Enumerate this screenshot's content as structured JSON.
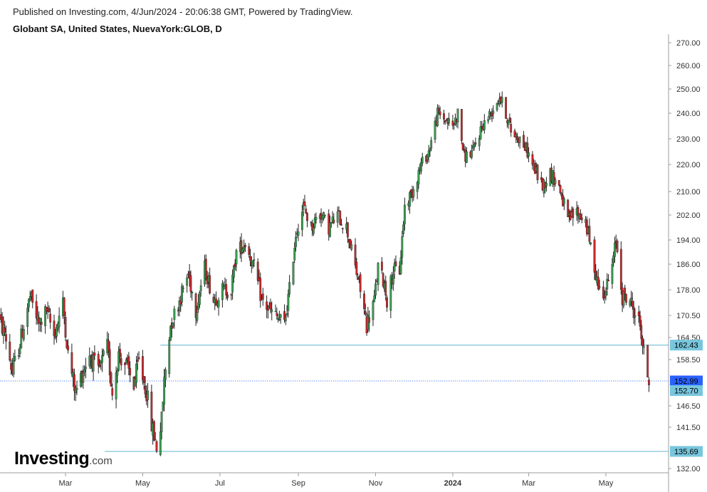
{
  "header": {
    "published": "Published on Investing.com, 4/Jun/2024 - 20:06:38 GMT, Powered by TradingView.",
    "instrument": "Globant SA, United States, NuevaYork:GLOB, D"
  },
  "logo": {
    "main": "Investing",
    "suffix": ".com"
  },
  "colors": {
    "up": "#3a9e50",
    "down": "#c8282b",
    "level_line": "#5fb6cf",
    "current_line": "#2962ff",
    "axis": "#9e9e9e"
  },
  "chart_data": {
    "type": "candlestick",
    "title": "",
    "xlabel": "",
    "ylabel": "",
    "ylim": [
      130.5,
      272
    ],
    "grid": false,
    "y_ticks": [
      "270.00",
      "260.00",
      "250.00",
      "240.00",
      "230.00",
      "220.00",
      "210.00",
      "202.00",
      "194.00",
      "186.00",
      "178.00",
      "170.50",
      "164.50",
      "158.50",
      "152.99",
      "152.70",
      "146.50",
      "141.50",
      "132.00"
    ],
    "y_tick_values": [
      270,
      260,
      250,
      240,
      230,
      220,
      210,
      202,
      194,
      186,
      178,
      170.5,
      164.5,
      158.5,
      152.99,
      152.7,
      146.5,
      141.5,
      132
    ],
    "x_ticks": [
      {
        "label": "Mar",
        "date": "2023-03-01",
        "bold": false
      },
      {
        "label": "May",
        "date": "2023-05-01",
        "bold": false
      },
      {
        "label": "Jul",
        "date": "2023-07-01",
        "bold": false
      },
      {
        "label": "Sep",
        "date": "2023-09-01",
        "bold": false
      },
      {
        "label": "Nov",
        "date": "2023-11-01",
        "bold": false
      },
      {
        "label": "2024",
        "date": "2024-01-01",
        "bold": true
      },
      {
        "label": "Mar",
        "date": "2024-03-01",
        "bold": false
      },
      {
        "label": "May",
        "date": "2024-05-01",
        "bold": false
      }
    ],
    "levels": [
      {
        "value": 162.43,
        "label": "162.43",
        "style": "solid",
        "start_date": "2023-05-15"
      },
      {
        "value": 135.69,
        "label": "135.69",
        "style": "solid",
        "start_date": "2023-04-01"
      },
      {
        "value": 152.99,
        "label": "152.99",
        "style": "dotted-current",
        "start_date": "2023-01-05"
      }
    ],
    "last_tag": {
      "value": 152.7,
      "label": "152.70"
    },
    "price_path": [
      [
        "2023-01-05",
        170
      ],
      [
        "2023-01-12",
        166
      ],
      [
        "2023-01-18",
        155
      ],
      [
        "2023-01-24",
        163
      ],
      [
        "2023-02-01",
        176
      ],
      [
        "2023-02-08",
        168
      ],
      [
        "2023-02-14",
        172
      ],
      [
        "2023-02-20",
        165
      ],
      [
        "2023-02-27",
        174
      ],
      [
        "2023-03-03",
        160
      ],
      [
        "2023-03-09",
        150
      ],
      [
        "2023-03-14",
        155
      ],
      [
        "2023-03-20",
        160
      ],
      [
        "2023-03-27",
        155
      ],
      [
        "2023-04-03",
        162
      ],
      [
        "2023-04-07",
        150
      ],
      [
        "2023-04-12",
        160
      ],
      [
        "2023-04-18",
        157
      ],
      [
        "2023-04-24",
        152
      ],
      [
        "2023-04-28",
        158
      ],
      [
        "2023-05-04",
        150
      ],
      [
        "2023-05-08",
        142
      ],
      [
        "2023-05-12",
        137
      ],
      [
        "2023-05-16",
        143
      ],
      [
        "2023-05-18",
        153
      ],
      [
        "2023-05-23",
        168
      ],
      [
        "2023-05-30",
        175
      ],
      [
        "2023-06-06",
        183
      ],
      [
        "2023-06-12",
        172
      ],
      [
        "2023-06-19",
        185
      ],
      [
        "2023-06-26",
        175
      ],
      [
        "2023-07-03",
        178
      ],
      [
        "2023-07-10",
        178
      ],
      [
        "2023-07-14",
        190
      ],
      [
        "2023-07-21",
        193
      ],
      [
        "2023-07-28",
        185
      ],
      [
        "2023-08-03",
        175
      ],
      [
        "2023-08-09",
        172
      ],
      [
        "2023-08-15",
        170
      ],
      [
        "2023-08-21",
        168
      ],
      [
        "2023-08-25",
        178
      ],
      [
        "2023-08-30",
        196
      ],
      [
        "2023-09-05",
        205
      ],
      [
        "2023-09-11",
        198
      ],
      [
        "2023-09-18",
        203
      ],
      [
        "2023-09-25",
        198
      ],
      [
        "2023-10-02",
        202
      ],
      [
        "2023-10-09",
        198
      ],
      [
        "2023-10-16",
        185
      ],
      [
        "2023-10-20",
        178
      ],
      [
        "2023-10-25",
        168
      ],
      [
        "2023-10-31",
        175
      ],
      [
        "2023-11-03",
        185
      ],
      [
        "2023-11-08",
        180
      ],
      [
        "2023-11-10",
        175
      ],
      [
        "2023-11-15",
        184
      ],
      [
        "2023-11-20",
        184
      ],
      [
        "2023-11-24",
        205
      ],
      [
        "2023-11-30",
        210
      ],
      [
        "2023-12-07",
        220
      ],
      [
        "2023-12-13",
        225
      ],
      [
        "2023-12-20",
        240
      ],
      [
        "2024-01-01",
        235
      ],
      [
        "2024-01-05",
        240
      ],
      [
        "2024-01-10",
        223
      ],
      [
        "2024-01-17",
        225
      ],
      [
        "2024-01-24",
        235
      ],
      [
        "2024-01-31",
        240
      ],
      [
        "2024-02-07",
        247
      ],
      [
        "2024-02-12",
        240
      ],
      [
        "2024-02-16",
        233
      ],
      [
        "2024-02-23",
        230
      ],
      [
        "2024-02-29",
        225
      ],
      [
        "2024-03-06",
        218
      ],
      [
        "2024-03-12",
        212
      ],
      [
        "2024-03-18",
        217
      ],
      [
        "2024-03-25",
        212
      ],
      [
        "2024-04-01",
        200
      ],
      [
        "2024-04-08",
        203
      ],
      [
        "2024-04-15",
        200
      ],
      [
        "2024-04-22",
        185
      ],
      [
        "2024-04-26",
        178
      ],
      [
        "2024-05-01",
        178
      ],
      [
        "2024-05-06",
        185
      ],
      [
        "2024-05-09",
        194
      ],
      [
        "2024-05-14",
        176
      ],
      [
        "2024-05-20",
        175
      ],
      [
        "2024-05-23",
        172
      ],
      [
        "2024-05-28",
        168
      ],
      [
        "2024-05-31",
        160
      ],
      [
        "2024-06-04",
        153
      ]
    ]
  }
}
